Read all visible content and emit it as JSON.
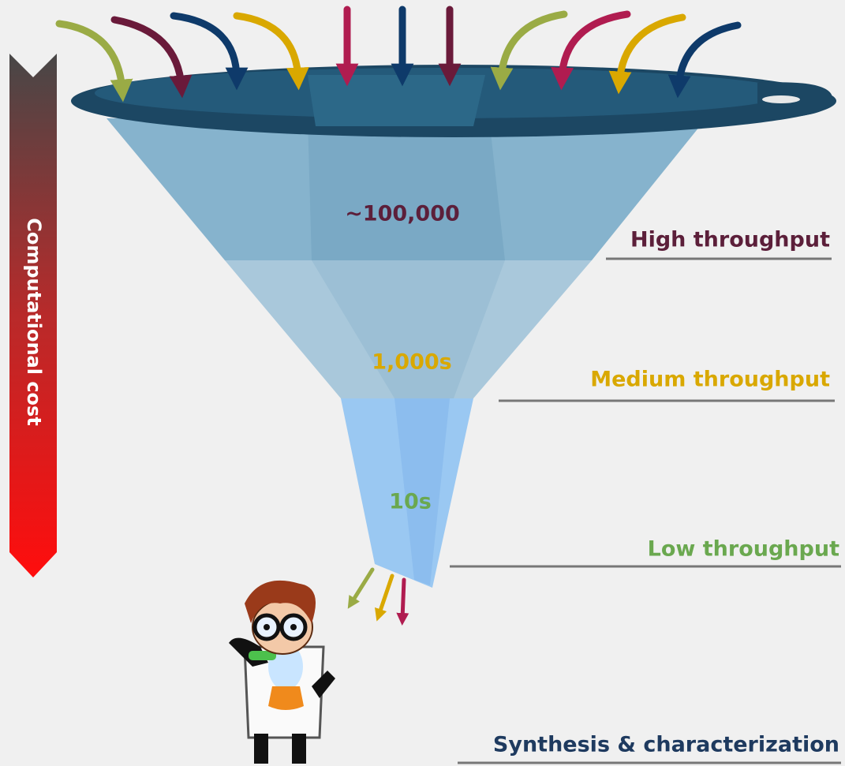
{
  "side_label": "Computational cost",
  "stages": [
    {
      "count": "~100,000",
      "label": "High throughput"
    },
    {
      "count": "1,000s",
      "label": "Medium throughput"
    },
    {
      "count": "10s",
      "label": "Low throughput"
    }
  ],
  "final_stage": "Synthesis & characterization"
}
